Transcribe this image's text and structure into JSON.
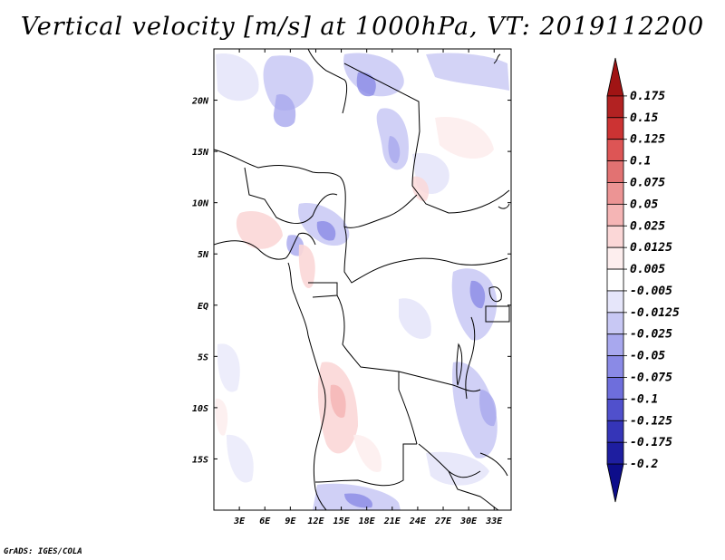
{
  "title": "Vertical velocity [m/s] at 1000hPa, VT: 2019112200",
  "footer": "GrADS: IGES/COLA",
  "map": {
    "lon_range": [
      0,
      35
    ],
    "lat_range": [
      -20,
      25
    ],
    "lat_labels": [
      "20N",
      "15N",
      "10N",
      "5N",
      "EQ",
      "5S",
      "10S",
      "15S"
    ],
    "lat_values": [
      20,
      15,
      10,
      5,
      0,
      -5,
      -10,
      -15
    ],
    "lon_labels": [
      "3E",
      "6E",
      "9E",
      "12E",
      "15E",
      "18E",
      "21E",
      "24E",
      "27E",
      "30E",
      "33E"
    ],
    "lon_values": [
      3,
      6,
      9,
      12,
      15,
      18,
      21,
      24,
      27,
      30,
      33
    ]
  },
  "colorbar": {
    "labels": [
      "0.175",
      "0.15",
      "0.125",
      "0.1",
      "0.075",
      "0.05",
      "0.025",
      "0.0125",
      "0.005",
      "-0.005",
      "-0.0125",
      "-0.025",
      "-0.05",
      "-0.075",
      "-0.1",
      "-0.125",
      "-0.175",
      "-0.2"
    ],
    "colors": [
      "#a01414",
      "#b22222",
      "#cc3333",
      "#dd5555",
      "#e27272",
      "#ec9494",
      "#f5b5b5",
      "#fbd7d7",
      "#fdeeee",
      "#ffffff",
      "#e6e6fa",
      "#c8c8f4",
      "#a8a8ee",
      "#8a8ae6",
      "#6e6edc",
      "#5050cc",
      "#3535b8",
      "#1e1ea0",
      "#0d0d8a"
    ]
  }
}
